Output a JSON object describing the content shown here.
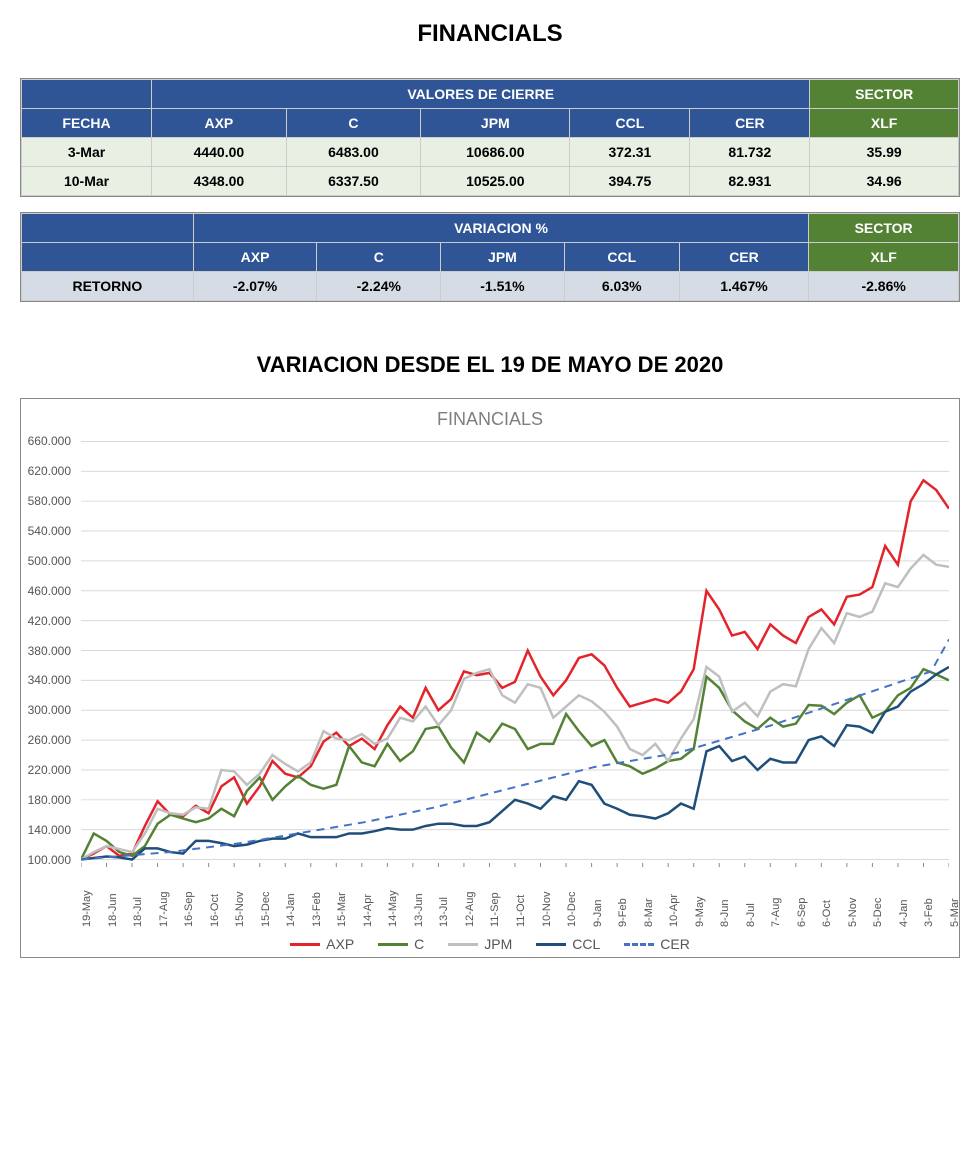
{
  "page_title": "FINANCIALS",
  "table1": {
    "title": "VALORES DE CIERRE",
    "sector_label": "SECTOR",
    "columns": [
      "FECHA",
      "AXP",
      "C",
      "JPM",
      "CCL",
      "CER",
      "XLF"
    ],
    "rows": [
      [
        "3-Mar",
        "4440.00",
        "6483.00",
        "10686.00",
        "372.31",
        "81.732",
        "35.99"
      ],
      [
        "10-Mar",
        "4348.00",
        "6337.50",
        "10525.00",
        "394.75",
        "82.931",
        "34.96"
      ]
    ]
  },
  "table2": {
    "title": "VARIACION %",
    "sector_label": "SECTOR",
    "columns": [
      "",
      "AXP",
      "C",
      "JPM",
      "CCL",
      "CER",
      "XLF"
    ],
    "rows": [
      [
        "RETORNO",
        "-2.07%",
        "-2.24%",
        "-1.51%",
        "6.03%",
        "1.467%",
        "-2.86%"
      ]
    ]
  },
  "chart": {
    "title": "VARIACION DESDE EL 19 DE MAYO DE 2020",
    "inner_title": "FINANCIALS",
    "type": "line",
    "background_color": "#ffffff",
    "grid_color": "#d9d9d9",
    "border_color": "#888888",
    "ylim": [
      90,
      670
    ],
    "yticks": [
      100,
      140,
      180,
      220,
      260,
      300,
      340,
      380,
      420,
      460,
      500,
      540,
      580,
      620,
      660
    ],
    "ytick_labels": [
      "100.000",
      "140.000",
      "180.000",
      "220.000",
      "260.000",
      "300.000",
      "340.000",
      "380.000",
      "420.000",
      "460.000",
      "500.000",
      "540.000",
      "580.000",
      "620.000",
      "660.000"
    ],
    "xticks": [
      "19-May",
      "18-Jun",
      "18-Jul",
      "17-Aug",
      "16-Sep",
      "16-Oct",
      "15-Nov",
      "15-Dec",
      "14-Jan",
      "13-Feb",
      "15-Mar",
      "14-Apr",
      "14-May",
      "13-Jun",
      "13-Jul",
      "12-Aug",
      "11-Sep",
      "11-Oct",
      "10-Nov",
      "10-Dec",
      "9-Jan",
      "9-Feb",
      "8-Mar",
      "10-Apr",
      "9-May",
      "8-Jun",
      "8-Jul",
      "7-Aug",
      "6-Sep",
      "6-Oct",
      "5-Nov",
      "5-Dec",
      "4-Jan",
      "3-Feb",
      "5-Mar"
    ],
    "series": [
      {
        "name": "AXP",
        "color": "#e3242b",
        "width": 2.5,
        "dash": "none",
        "values": [
          100,
          108,
          118,
          105,
          108,
          145,
          178,
          160,
          158,
          172,
          162,
          198,
          210,
          175,
          198,
          232,
          215,
          210,
          225,
          258,
          270,
          252,
          262,
          248,
          280,
          305,
          290,
          330,
          300,
          315,
          352,
          347,
          350,
          330,
          338,
          380,
          345,
          320,
          340,
          370,
          375,
          360,
          330,
          305,
          310,
          315,
          310,
          325,
          355,
          460,
          435,
          400,
          405,
          382,
          415,
          400,
          390,
          425,
          435,
          415,
          452,
          455,
          465,
          520,
          495,
          580,
          608,
          595,
          570
        ]
      },
      {
        "name": "C",
        "color": "#548235",
        "width": 2.5,
        "dash": "none",
        "values": [
          100,
          135,
          125,
          110,
          105,
          118,
          148,
          160,
          155,
          150,
          155,
          168,
          158,
          192,
          210,
          180,
          198,
          212,
          200,
          195,
          200,
          252,
          230,
          225,
          255,
          232,
          245,
          275,
          278,
          250,
          230,
          270,
          258,
          282,
          275,
          248,
          255,
          255,
          295,
          272,
          252,
          260,
          230,
          225,
          215,
          222,
          232,
          235,
          248,
          345,
          330,
          300,
          285,
          275,
          290,
          278,
          282,
          307,
          306,
          295,
          310,
          320,
          290,
          298,
          320,
          330,
          355,
          348,
          340
        ]
      },
      {
        "name": "JPM",
        "color": "#bfbfbf",
        "width": 2.5,
        "dash": "none",
        "values": [
          100,
          110,
          118,
          114,
          110,
          135,
          168,
          162,
          160,
          170,
          168,
          220,
          218,
          200,
          215,
          240,
          228,
          218,
          230,
          272,
          262,
          260,
          268,
          255,
          262,
          290,
          285,
          305,
          280,
          300,
          342,
          350,
          355,
          320,
          310,
          335,
          330,
          290,
          305,
          320,
          312,
          298,
          278,
          248,
          240,
          255,
          232,
          262,
          288,
          358,
          345,
          298,
          310,
          292,
          325,
          335,
          332,
          382,
          410,
          390,
          430,
          425,
          432,
          470,
          465,
          490,
          508,
          495,
          492
        ]
      },
      {
        "name": "CCL",
        "color": "#1f4e79",
        "width": 2.5,
        "dash": "none",
        "values": [
          100,
          102,
          104,
          103,
          100,
          115,
          115,
          110,
          108,
          125,
          125,
          122,
          118,
          120,
          125,
          128,
          128,
          135,
          130,
          130,
          130,
          135,
          135,
          138,
          142,
          140,
          140,
          145,
          148,
          148,
          145,
          145,
          150,
          165,
          180,
          175,
          168,
          185,
          180,
          205,
          200,
          175,
          168,
          160,
          158,
          155,
          162,
          175,
          168,
          245,
          252,
          232,
          238,
          220,
          235,
          230,
          230,
          260,
          265,
          252,
          280,
          278,
          270,
          298,
          305,
          325,
          335,
          348,
          358
        ]
      },
      {
        "name": "CER",
        "color": "#4472c4",
        "width": 2,
        "dash": "8,6",
        "values": [
          100,
          102,
          104,
          106,
          108,
          110,
          113,
          116,
          119,
          122,
          126,
          130,
          134,
          138,
          142,
          146,
          150,
          155,
          160,
          165,
          170,
          176,
          182,
          188,
          194,
          200,
          206,
          212,
          218,
          224,
          228,
          232,
          236,
          240,
          245,
          252,
          259,
          266,
          273,
          280,
          288,
          296,
          304,
          312,
          320,
          328,
          336,
          344,
          352,
          395
        ]
      }
    ],
    "legend": [
      {
        "label": "AXP",
        "color": "#e3242b",
        "dash": "none"
      },
      {
        "label": "C",
        "color": "#548235",
        "dash": "none"
      },
      {
        "label": "JPM",
        "color": "#bfbfbf",
        "dash": "none"
      },
      {
        "label": "CCL",
        "color": "#1f4e79",
        "dash": "none"
      },
      {
        "label": "CER",
        "color": "#4472c4",
        "dash": "dashed"
      }
    ],
    "label_fontsize": 12,
    "title_fontsize": 22
  }
}
